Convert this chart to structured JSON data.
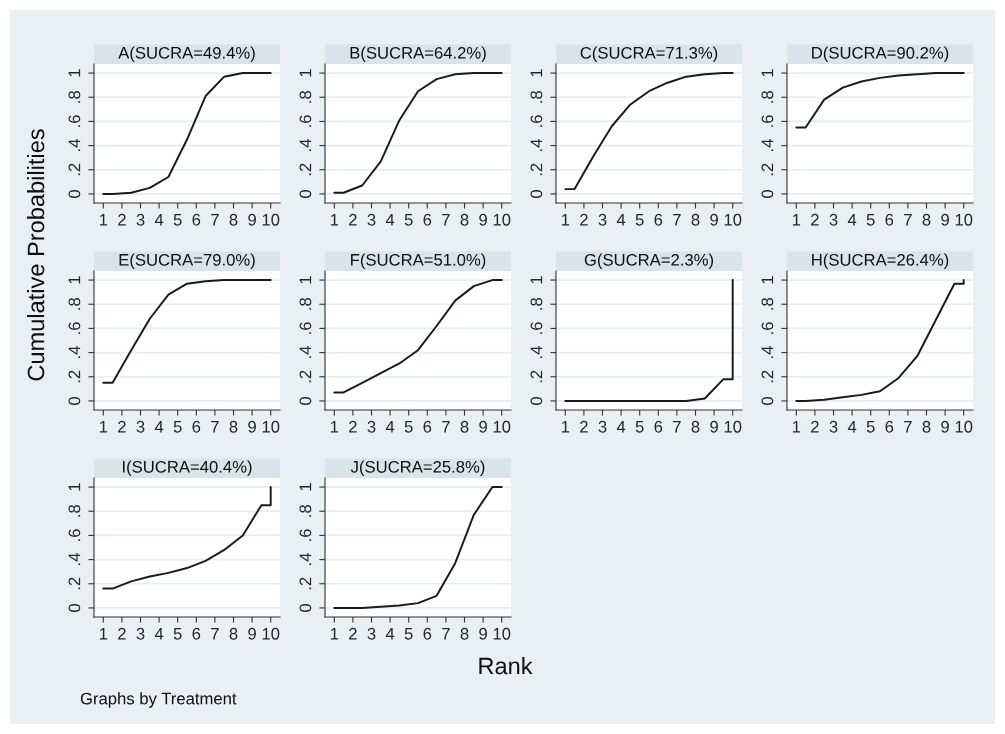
{
  "chart_data": [
    {
      "type": "line",
      "title": "A(SUCRA=49.4%)",
      "ylabel": "Cumulative Probabilities",
      "x": [
        1,
        1.5,
        2.5,
        3.5,
        4.5,
        5.5,
        6.5,
        7.5,
        8.5,
        9.5,
        10,
        10
      ],
      "series": [
        {
          "color": "#1a1a1a",
          "values": [
            0,
            0,
            0.01,
            0.05,
            0.14,
            0.45,
            0.81,
            0.97,
            1,
            1,
            1,
            1
          ]
        }
      ],
      "xlim": [
        0.5,
        10.5
      ],
      "ylim": [
        -0.075,
        1.075
      ],
      "xticks": [
        1,
        2,
        3,
        4,
        5,
        6,
        7,
        8,
        9,
        10
      ],
      "yticks": [
        0,
        {
          "value": 0.2,
          "label": ".2"
        },
        {
          "value": 0.4,
          "label": ".4"
        },
        {
          "value": 0.6,
          "label": ".6"
        },
        {
          "value": 0.8,
          "label": ".8"
        },
        1
      ],
      "grid": "y"
    },
    {
      "type": "line",
      "title": "B(SUCRA=64.2%)",
      "x": [
        1,
        1.5,
        2.5,
        3.5,
        4.5,
        5.5,
        6.5,
        7.5,
        8.5,
        9.5,
        10,
        10
      ],
      "series": [
        {
          "color": "#1a1a1a",
          "values": [
            0.01,
            0.01,
            0.07,
            0.27,
            0.61,
            0.85,
            0.95,
            0.99,
            1,
            1,
            1,
            1
          ]
        }
      ],
      "xlim": [
        0.5,
        10.5
      ],
      "ylim": [
        -0.075,
        1.075
      ],
      "xticks": [
        1,
        2,
        3,
        4,
        5,
        6,
        7,
        8,
        9,
        10
      ],
      "yticks": [
        0,
        {
          "value": 0.2,
          "label": ".2"
        },
        {
          "value": 0.4,
          "label": ".4"
        },
        {
          "value": 0.6,
          "label": ".6"
        },
        {
          "value": 0.8,
          "label": ".8"
        },
        1
      ],
      "grid": "y"
    },
    {
      "type": "line",
      "title": "C(SUCRA=71.3%)",
      "x": [
        1,
        1.5,
        2.5,
        3.5,
        4.5,
        5.5,
        6.5,
        7.5,
        8.5,
        9.5,
        10,
        10
      ],
      "series": [
        {
          "color": "#1a1a1a",
          "values": [
            0.04,
            0.04,
            0.31,
            0.56,
            0.74,
            0.85,
            0.92,
            0.97,
            0.99,
            1,
            1,
            1
          ]
        }
      ],
      "xlim": [
        0.5,
        10.5
      ],
      "ylim": [
        -0.075,
        1.075
      ],
      "xticks": [
        1,
        2,
        3,
        4,
        5,
        6,
        7,
        8,
        9,
        10
      ],
      "yticks": [
        0,
        {
          "value": 0.2,
          "label": ".2"
        },
        {
          "value": 0.4,
          "label": ".4"
        },
        {
          "value": 0.6,
          "label": ".6"
        },
        {
          "value": 0.8,
          "label": ".8"
        },
        1
      ],
      "grid": "y"
    },
    {
      "type": "line",
      "title": "D(SUCRA=90.2%)",
      "x": [
        1,
        1.5,
        2.5,
        3.5,
        4.5,
        5.5,
        6.5,
        7.5,
        8.5,
        9.5,
        10,
        10
      ],
      "series": [
        {
          "color": "#1a1a1a",
          "values": [
            0.55,
            0.55,
            0.78,
            0.88,
            0.93,
            0.96,
            0.98,
            0.99,
            1,
            1,
            1,
            1
          ]
        }
      ],
      "xlim": [
        0.5,
        10.5
      ],
      "ylim": [
        -0.075,
        1.075
      ],
      "xticks": [
        1,
        2,
        3,
        4,
        5,
        6,
        7,
        8,
        9,
        10
      ],
      "yticks": [
        0,
        {
          "value": 0.2,
          "label": ".2"
        },
        {
          "value": 0.4,
          "label": ".4"
        },
        {
          "value": 0.6,
          "label": ".6"
        },
        {
          "value": 0.8,
          "label": ".8"
        },
        1
      ],
      "grid": "y"
    },
    {
      "type": "line",
      "title": "E(SUCRA=79.0%)",
      "x": [
        1,
        1.5,
        2.5,
        3.5,
        4.5,
        5.5,
        6.5,
        7.5,
        8.5,
        9.5,
        10,
        10
      ],
      "series": [
        {
          "color": "#1a1a1a",
          "values": [
            0.15,
            0.15,
            0.42,
            0.68,
            0.88,
            0.97,
            0.99,
            1,
            1,
            1,
            1,
            1
          ]
        }
      ],
      "xlim": [
        0.5,
        10.5
      ],
      "ylim": [
        -0.075,
        1.075
      ],
      "xticks": [
        1,
        2,
        3,
        4,
        5,
        6,
        7,
        8,
        9,
        10
      ],
      "yticks": [
        0,
        {
          "value": 0.2,
          "label": ".2"
        },
        {
          "value": 0.4,
          "label": ".4"
        },
        {
          "value": 0.6,
          "label": ".6"
        },
        {
          "value": 0.8,
          "label": ".8"
        },
        1
      ],
      "grid": "y"
    },
    {
      "type": "line",
      "title": "F(SUCRA=51.0%)",
      "x": [
        1,
        1.5,
        2.5,
        3.5,
        4.5,
        5.5,
        6.5,
        7.5,
        8.5,
        9.5,
        10,
        10
      ],
      "series": [
        {
          "color": "#1a1a1a",
          "values": [
            0.07,
            0.07,
            0.15,
            0.23,
            0.31,
            0.42,
            0.62,
            0.83,
            0.95,
            1,
            1,
            1
          ]
        }
      ],
      "xlim": [
        0.5,
        10.5
      ],
      "ylim": [
        -0.075,
        1.075
      ],
      "xticks": [
        1,
        2,
        3,
        4,
        5,
        6,
        7,
        8,
        9,
        10
      ],
      "yticks": [
        0,
        {
          "value": 0.2,
          "label": ".2"
        },
        {
          "value": 0.4,
          "label": ".4"
        },
        {
          "value": 0.6,
          "label": ".6"
        },
        {
          "value": 0.8,
          "label": ".8"
        },
        1
      ],
      "grid": "y"
    },
    {
      "type": "line",
      "title": "G(SUCRA=2.3%)",
      "x": [
        1,
        1.5,
        2.5,
        3.5,
        4.5,
        5.5,
        6.5,
        7.5,
        8.5,
        9.5,
        10,
        10
      ],
      "series": [
        {
          "color": "#1a1a1a",
          "values": [
            0,
            0,
            0,
            0,
            0,
            0,
            0,
            0,
            0.02,
            0.18,
            0.18,
            1
          ]
        }
      ],
      "xlim": [
        0.5,
        10.5
      ],
      "ylim": [
        -0.075,
        1.075
      ],
      "xticks": [
        1,
        2,
        3,
        4,
        5,
        6,
        7,
        8,
        9,
        10
      ],
      "yticks": [
        0,
        {
          "value": 0.2,
          "label": ".2"
        },
        {
          "value": 0.4,
          "label": ".4"
        },
        {
          "value": 0.6,
          "label": ".6"
        },
        {
          "value": 0.8,
          "label": ".8"
        },
        1
      ],
      "grid": "y"
    },
    {
      "type": "line",
      "title": "H(SUCRA=26.4%)",
      "x": [
        1,
        1.5,
        2.5,
        3.5,
        4.5,
        5.5,
        6.5,
        7.5,
        8.5,
        9.5,
        10,
        10
      ],
      "series": [
        {
          "color": "#1a1a1a",
          "values": [
            0,
            0,
            0.01,
            0.03,
            0.05,
            0.08,
            0.19,
            0.37,
            0.67,
            0.97,
            0.97,
            1
          ]
        }
      ],
      "xlim": [
        0.5,
        10.5
      ],
      "ylim": [
        -0.075,
        1.075
      ],
      "xticks": [
        1,
        2,
        3,
        4,
        5,
        6,
        7,
        8,
        9,
        10
      ],
      "yticks": [
        0,
        {
          "value": 0.2,
          "label": ".2"
        },
        {
          "value": 0.4,
          "label": ".4"
        },
        {
          "value": 0.6,
          "label": ".6"
        },
        {
          "value": 0.8,
          "label": ".8"
        },
        1
      ],
      "grid": "y"
    },
    {
      "type": "line",
      "title": "I(SUCRA=40.4%)",
      "x": [
        1,
        1.5,
        2.5,
        3.5,
        4.5,
        5.5,
        6.5,
        7.5,
        8.5,
        9.5,
        10,
        10
      ],
      "series": [
        {
          "color": "#1a1a1a",
          "values": [
            0.16,
            0.16,
            0.22,
            0.26,
            0.29,
            0.33,
            0.39,
            0.48,
            0.6,
            0.85,
            0.85,
            1
          ]
        }
      ],
      "xlim": [
        0.5,
        10.5
      ],
      "ylim": [
        -0.075,
        1.075
      ],
      "xticks": [
        1,
        2,
        3,
        4,
        5,
        6,
        7,
        8,
        9,
        10
      ],
      "yticks": [
        0,
        {
          "value": 0.2,
          "label": ".2"
        },
        {
          "value": 0.4,
          "label": ".4"
        },
        {
          "value": 0.6,
          "label": ".6"
        },
        {
          "value": 0.8,
          "label": ".8"
        },
        1
      ],
      "grid": "y"
    },
    {
      "type": "line",
      "title": "J(SUCRA=25.8%)",
      "xlabel": "Rank",
      "annotations": [
        "Graphs by Treatment"
      ],
      "x": [
        1,
        1.5,
        2.5,
        3.5,
        4.5,
        5.5,
        6.5,
        7.5,
        8.5,
        9.5,
        10,
        10
      ],
      "series": [
        {
          "color": "#1a1a1a",
          "values": [
            0,
            0,
            0,
            0.01,
            0.02,
            0.04,
            0.1,
            0.37,
            0.77,
            1,
            1,
            1
          ]
        }
      ],
      "xlim": [
        0.5,
        10.5
      ],
      "ylim": [
        -0.075,
        1.075
      ],
      "xticks": [
        1,
        2,
        3,
        4,
        5,
        6,
        7,
        8,
        9,
        10
      ],
      "yticks": [
        0,
        {
          "value": 0.2,
          "label": ".2"
        },
        {
          "value": 0.4,
          "label": ".4"
        },
        {
          "value": 0.6,
          "label": ".6"
        },
        {
          "value": 0.8,
          "label": ".8"
        },
        1
      ],
      "grid": "y"
    }
  ]
}
